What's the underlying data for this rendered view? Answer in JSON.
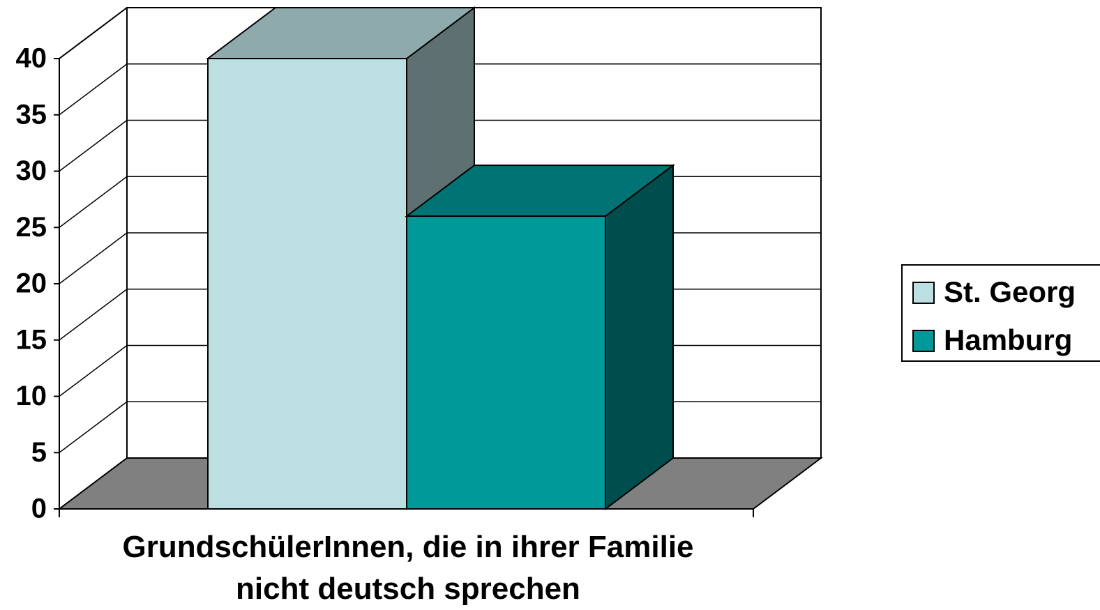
{
  "chart_data": {
    "type": "bar3d",
    "categories": [
      "GrundschülerInnen, die in ihrer Familie nicht deutsch sprechen"
    ],
    "series": [
      {
        "name": "St. Georg",
        "color": "#bce0e2",
        "values": [
          40
        ]
      },
      {
        "name": "Hamburg",
        "color": "#009999",
        "values": [
          26
        ]
      }
    ],
    "ylim": [
      0,
      40
    ],
    "yticks": [
      0,
      5,
      10,
      15,
      20,
      25,
      30,
      35,
      40
    ],
    "grid": true,
    "legend": "right"
  }
}
